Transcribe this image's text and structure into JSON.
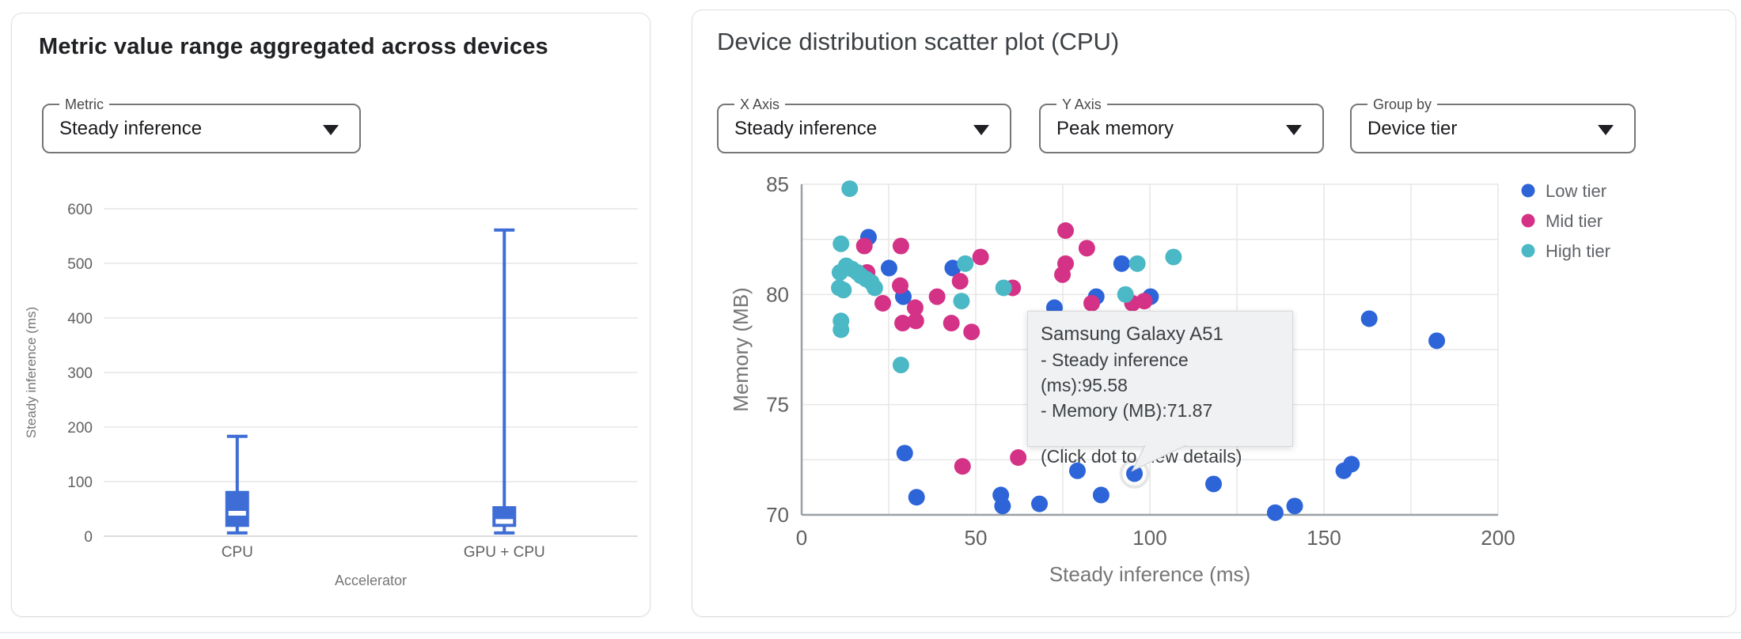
{
  "left_card": {
    "title": "Metric value range aggregated across devices",
    "metric_select": {
      "label": "Metric",
      "value": "Steady inference"
    }
  },
  "right_card": {
    "title": "Device distribution scatter plot (CPU)",
    "x_axis_select": {
      "label": "X Axis",
      "value": "Steady inference"
    },
    "y_axis_select": {
      "label": "Y Axis",
      "value": "Peak memory"
    },
    "group_by_select": {
      "label": "Group by",
      "value": "Device tier"
    }
  },
  "tooltip": {
    "title": "Samsung Galaxy A51",
    "line1": "- Steady inference (ms):95.58",
    "line2": "- Memory (MB):71.87",
    "hint": "(Click dot to view details)"
  },
  "colors": {
    "low_tier": "#2d64d8",
    "mid_tier": "#d43286",
    "high_tier": "#4bb8c5",
    "box_fill": "#3d6dd5",
    "grid": "#e6e6e6",
    "axis": "#9aa0a6",
    "tick_text": "#616161",
    "axis_title_text": "#757575",
    "legend_text": "#5f6368"
  },
  "chart_data": [
    {
      "type": "boxplot",
      "xlabel": "Accelerator",
      "ylabel": "Steady inference (ms)",
      "ylim": [
        0,
        600
      ],
      "yticks": [
        0,
        100,
        200,
        300,
        400,
        500,
        600
      ],
      "grid": true,
      "categories": [
        "CPU",
        "GPU + CPU"
      ],
      "series": [
        {
          "name": "CPU",
          "low": 6,
          "q1": 17,
          "median": 42,
          "q3": 83,
          "high": 183
        },
        {
          "name": "GPU + CPU",
          "low": 6,
          "q1": 17,
          "median": 27,
          "q3": 55,
          "high": 561
        }
      ]
    },
    {
      "type": "scatter",
      "xlabel": "Steady inference (ms)",
      "ylabel": "Memory (MB)",
      "xlim": [
        0,
        200
      ],
      "ylim": [
        70,
        85
      ],
      "xticks": [
        0,
        50,
        100,
        150,
        200
      ],
      "yticks": [
        70,
        75,
        80,
        85
      ],
      "grid_step_x": 25,
      "grid_step_y": 2.5,
      "grid": true,
      "legend_position": "right",
      "series": [
        {
          "name": "Low tier",
          "color": "#2d64d8",
          "points": [
            [
              19.2,
              82.6
            ],
            [
              25.1,
              81.2
            ],
            [
              43.4,
              81.2
            ],
            [
              29.2,
              79.9
            ],
            [
              72.6,
              79.4
            ],
            [
              84.6,
              79.9
            ],
            [
              91.9,
              81.4
            ],
            [
              100.2,
              79.9
            ],
            [
              29.6,
              72.8
            ],
            [
              33,
              70.8
            ],
            [
              57.2,
              70.9
            ],
            [
              57.7,
              70.4
            ],
            [
              68.3,
              70.5
            ],
            [
              79.2,
              72.0
            ],
            [
              86,
              70.9
            ],
            [
              95.58,
              71.87
            ],
            [
              118.3,
              71.4
            ],
            [
              136,
              70.1
            ],
            [
              141.6,
              70.4
            ],
            [
              155.7,
              72.0
            ],
            [
              157.9,
              72.3
            ],
            [
              163,
              78.9
            ],
            [
              182.4,
              77.9
            ]
          ]
        },
        {
          "name": "Mid tier",
          "color": "#d43286",
          "points": [
            [
              18,
              82.2
            ],
            [
              28.5,
              82.2
            ],
            [
              18.8,
              81.0
            ],
            [
              28.3,
              80.4
            ],
            [
              23.3,
              79.6
            ],
            [
              32.6,
              79.4
            ],
            [
              38.9,
              79.9
            ],
            [
              45.5,
              80.6
            ],
            [
              51.4,
              81.7
            ],
            [
              29,
              78.7
            ],
            [
              32.8,
              78.8
            ],
            [
              43,
              78.7
            ],
            [
              48.8,
              78.3
            ],
            [
              60.6,
              80.3
            ],
            [
              75.8,
              82.9
            ],
            [
              81.9,
              82.1
            ],
            [
              75.8,
              81.4
            ],
            [
              74.9,
              80.9
            ],
            [
              83.3,
              79.6
            ],
            [
              95,
              79.6
            ],
            [
              98.4,
              79.7
            ],
            [
              46.2,
              72.2
            ],
            [
              62.2,
              72.6
            ]
          ]
        },
        {
          "name": "High tier",
          "color": "#4bb8c5",
          "points": [
            [
              13.8,
              84.8
            ],
            [
              11.3,
              82.3
            ],
            [
              11,
              81.0
            ],
            [
              12.8,
              81.3
            ],
            [
              14.5,
              81.15
            ],
            [
              16,
              81.0
            ],
            [
              17,
              80.85
            ],
            [
              18.5,
              80.7
            ],
            [
              20,
              80.55
            ],
            [
              10.8,
              80.3
            ],
            [
              12,
              80.2
            ],
            [
              21,
              80.3
            ],
            [
              11.3,
              78.8
            ],
            [
              11.3,
              78.4
            ],
            [
              47,
              81.4
            ],
            [
              45.9,
              79.7
            ],
            [
              28.5,
              76.8
            ],
            [
              58,
              80.3
            ],
            [
              93,
              80.0
            ],
            [
              96.4,
              81.4
            ],
            [
              106.8,
              81.7
            ]
          ]
        }
      ],
      "highlight": {
        "series": "Low tier",
        "x": 95.58,
        "y": 71.87,
        "device": "Samsung Galaxy A51"
      }
    }
  ]
}
